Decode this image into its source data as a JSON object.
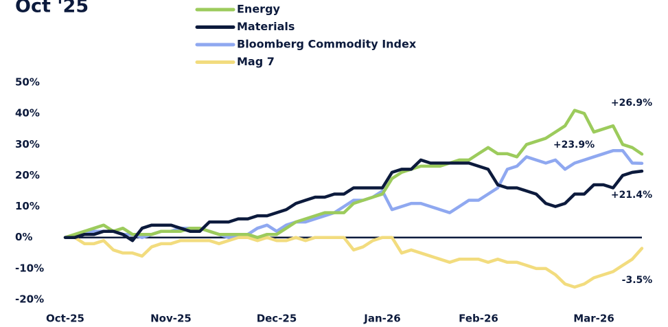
{
  "chart_data": {
    "type": "line",
    "title": "Oct '25",
    "categories": [
      "Oct-25",
      null,
      null,
      null,
      null,
      null,
      null,
      null,
      null,
      null,
      null,
      "Nov-25",
      null,
      null,
      null,
      null,
      null,
      null,
      null,
      null,
      null,
      null,
      "Dec-25",
      null,
      null,
      null,
      null,
      null,
      null,
      null,
      null,
      null,
      null,
      "Jan-26",
      null,
      null,
      null,
      null,
      null,
      null,
      null,
      null,
      null,
      "Feb-26",
      null,
      null,
      null,
      null,
      null,
      null,
      null,
      null,
      null,
      null,
      null,
      "Mar-26",
      null,
      null,
      null,
      null,
      null
    ],
    "ylim": [
      -20,
      50
    ],
    "yticks": [
      {
        "value": 50,
        "label": "50%"
      },
      {
        "value": 40,
        "label": "40%"
      },
      {
        "value": 30,
        "label": "30%"
      },
      {
        "value": 20,
        "label": "20%"
      },
      {
        "value": 10,
        "label": "10%"
      },
      {
        "value": 0,
        "label": "0%"
      },
      {
        "value": -10,
        "label": "-10%"
      },
      {
        "value": -20,
        "label": "-20%"
      }
    ],
    "grid": false,
    "series": [
      {
        "name": "Energy",
        "color": "#9ccb5c",
        "end_label": "+26.9%",
        "values": [
          0,
          1,
          2,
          3,
          4,
          2,
          3,
          1,
          1,
          1,
          2,
          2,
          2,
          3,
          3,
          2,
          1,
          1,
          1,
          1,
          0,
          1,
          1,
          3,
          5,
          6,
          7,
          8,
          8,
          8,
          11,
          12,
          13,
          14,
          19,
          21,
          22,
          23,
          23,
          23,
          24,
          25,
          25,
          27,
          29,
          27,
          27,
          26,
          30,
          31,
          32,
          34,
          36,
          41,
          40,
          34,
          35,
          36,
          30,
          29,
          26.9
        ]
      },
      {
        "name": "Materials",
        "color": "#0c1a3c",
        "end_label": "+21.4%",
        "values": [
          0,
          0,
          1,
          1,
          2,
          2,
          1,
          -1,
          3,
          4,
          4,
          4,
          3,
          2,
          2,
          5,
          5,
          5,
          6,
          6,
          7,
          7,
          8,
          9,
          11,
          12,
          13,
          13,
          14,
          14,
          16,
          16,
          16,
          16,
          21,
          22,
          22,
          25,
          24,
          24,
          24,
          24,
          24,
          23,
          22,
          17,
          16,
          16,
          15,
          14,
          11,
          10,
          11,
          14,
          14,
          17,
          17,
          16,
          20,
          21,
          21.4
        ]
      },
      {
        "name": "Bloomberg Commodity Index",
        "color": "#8fa8f0",
        "end_label": "+23.9%",
        "values": [
          0,
          0,
          1,
          2,
          2,
          2,
          1,
          1,
          0,
          1,
          2,
          2,
          3,
          3,
          3,
          2,
          1,
          0,
          1,
          1,
          3,
          4,
          2,
          4,
          5,
          5,
          6,
          7,
          8,
          10,
          12,
          12,
          13,
          15,
          9,
          10,
          11,
          11,
          10,
          9,
          8,
          10,
          12,
          12,
          14,
          16,
          22,
          23,
          26,
          25,
          24,
          25,
          22,
          24,
          25,
          26,
          27,
          28,
          28,
          24,
          23.9
        ]
      },
      {
        "name": "Mag 7",
        "color": "#f2dc7e",
        "end_label": "-3.5%",
        "values": [
          0,
          0,
          -2,
          -2,
          -1,
          -4,
          -5,
          -5,
          -6,
          -3,
          -2,
          -2,
          -1,
          -1,
          -1,
          -1,
          -2,
          -1,
          0,
          0,
          -1,
          0,
          -1,
          -1,
          0,
          -1,
          0,
          0,
          0,
          0,
          -4,
          -3,
          -1,
          0,
          0,
          -5,
          -4,
          -5,
          -6,
          -7,
          -8,
          -7,
          -7,
          -7,
          -8,
          -7,
          -8,
          -8,
          -9,
          -10,
          -10,
          -12,
          -15,
          -16,
          -15,
          -13,
          -12,
          -11,
          -9,
          -7,
          -3.5
        ]
      }
    ]
  }
}
